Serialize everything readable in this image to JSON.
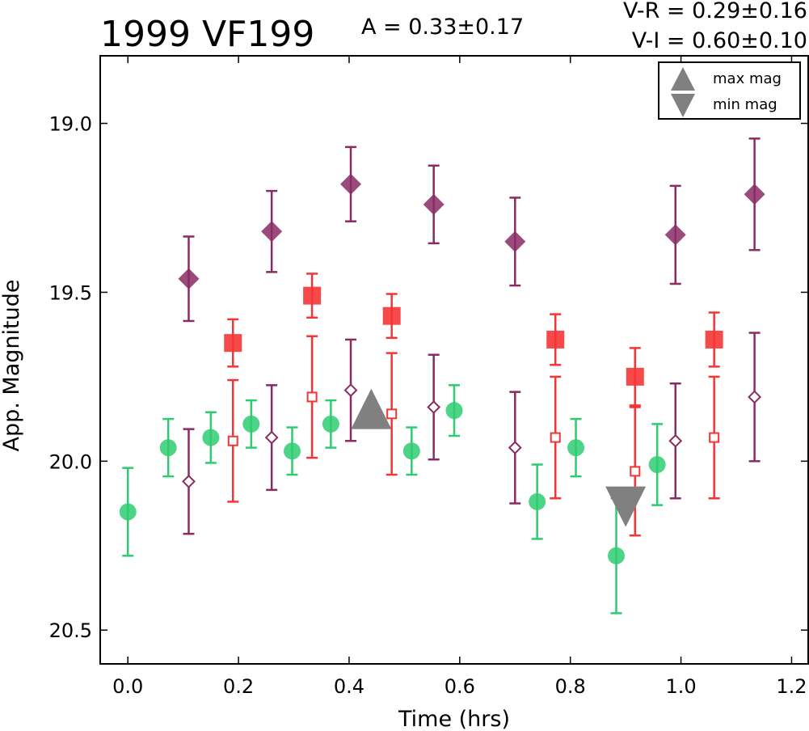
{
  "chart_data": {
    "type": "scatter",
    "title": "1999 VF199",
    "amplitude_text": "A  = 0.33±0.17",
    "color_text_1": "V-R = 0.29±0.16",
    "color_text_2": "V-I  = 0.60±0.10",
    "xlabel": "Time (hrs)",
    "ylabel": "App. Magnitude",
    "xlim": [
      -0.05,
      1.23
    ],
    "ylim": [
      20.6,
      18.8
    ],
    "y_inverted": true,
    "grid": false,
    "xticks": [
      0.0,
      0.2,
      0.4,
      0.6,
      0.8,
      1.0,
      1.2
    ],
    "xtick_labels": [
      "0.0",
      "0.2",
      "0.4",
      "0.6",
      "0.8",
      "1.0",
      "1.2"
    ],
    "yticks": [
      19.0,
      19.5,
      20.0,
      20.5
    ],
    "ytick_labels": [
      "19.0",
      "19.5",
      "20.0",
      "20.5"
    ],
    "legend": {
      "placement": "top-right",
      "entries": [
        {
          "label": "max mag",
          "marker": "triangle-up",
          "color": "#808080"
        },
        {
          "label": "min mag",
          "marker": "triangle-down",
          "color": "#808080"
        }
      ]
    },
    "series": [
      {
        "color": "#2ecc71",
        "marker": "circle",
        "filled": true,
        "points": [
          {
            "x": 0.0,
            "y": 20.15,
            "err": 0.13
          },
          {
            "x": 0.073,
            "y": 19.96,
            "err": 0.085
          },
          {
            "x": 0.15,
            "y": 19.93,
            "err": 0.075
          },
          {
            "x": 0.223,
            "y": 19.89,
            "err": 0.07
          },
          {
            "x": 0.297,
            "y": 19.97,
            "err": 0.07
          },
          {
            "x": 0.367,
            "y": 19.89,
            "err": 0.07
          },
          {
            "x": 0.513,
            "y": 19.97,
            "err": 0.07
          },
          {
            "x": 0.59,
            "y": 19.85,
            "err": 0.075
          },
          {
            "x": 0.74,
            "y": 20.12,
            "err": 0.11
          },
          {
            "x": 0.81,
            "y": 19.96,
            "err": 0.085
          },
          {
            "x": 0.883,
            "y": 20.28,
            "err": 0.17
          },
          {
            "x": 0.957,
            "y": 20.01,
            "err": 0.12
          }
        ]
      },
      {
        "color": "#f53535",
        "marker": "square",
        "filled": true,
        "points": [
          {
            "x": 0.19,
            "y": 19.65,
            "err": 0.07
          },
          {
            "x": 0.333,
            "y": 19.51,
            "err": 0.065
          },
          {
            "x": 0.477,
            "y": 19.57,
            "err": 0.065
          },
          {
            "x": 0.773,
            "y": 19.64,
            "err": 0.075
          },
          {
            "x": 0.917,
            "y": 19.75,
            "err": 0.085
          },
          {
            "x": 1.06,
            "y": 19.64,
            "err": 0.08
          }
        ]
      },
      {
        "color": "#f53535",
        "marker": "square",
        "filled": false,
        "points": [
          {
            "x": 0.19,
            "y": 19.94,
            "err": 0.18
          },
          {
            "x": 0.333,
            "y": 19.81,
            "err": 0.18
          },
          {
            "x": 0.477,
            "y": 19.86,
            "err": 0.18
          },
          {
            "x": 0.773,
            "y": 19.93,
            "err": 0.18
          },
          {
            "x": 0.917,
            "y": 20.03,
            "err": 0.19
          },
          {
            "x": 1.06,
            "y": 19.93,
            "err": 0.18
          }
        ]
      },
      {
        "color": "#8a2c64",
        "marker": "diamond",
        "filled": true,
        "points": [
          {
            "x": 0.11,
            "y": 19.46,
            "err": 0.125
          },
          {
            "x": 0.26,
            "y": 19.32,
            "err": 0.12
          },
          {
            "x": 0.403,
            "y": 19.18,
            "err": 0.11
          },
          {
            "x": 0.553,
            "y": 19.24,
            "err": 0.115
          },
          {
            "x": 0.7,
            "y": 19.35,
            "err": 0.13
          },
          {
            "x": 0.99,
            "y": 19.33,
            "err": 0.145
          },
          {
            "x": 1.133,
            "y": 19.21,
            "err": 0.165
          }
        ]
      },
      {
        "color": "#8a2c64",
        "marker": "diamond",
        "filled": false,
        "points": [
          {
            "x": 0.11,
            "y": 20.06,
            "err": 0.155
          },
          {
            "x": 0.26,
            "y": 19.93,
            "err": 0.155
          },
          {
            "x": 0.403,
            "y": 19.79,
            "err": 0.15
          },
          {
            "x": 0.553,
            "y": 19.84,
            "err": 0.155
          },
          {
            "x": 0.7,
            "y": 19.96,
            "err": 0.165
          },
          {
            "x": 0.99,
            "y": 19.94,
            "err": 0.17
          },
          {
            "x": 1.133,
            "y": 19.81,
            "err": 0.19
          }
        ]
      }
    ],
    "extrema": [
      {
        "type": "max mag",
        "x": 0.44,
        "y": 19.85,
        "marker": "triangle-up",
        "color": "#808080"
      },
      {
        "type": "min mag",
        "x": 0.9,
        "y": 20.13,
        "marker": "triangle-down",
        "color": "#808080"
      }
    ]
  }
}
